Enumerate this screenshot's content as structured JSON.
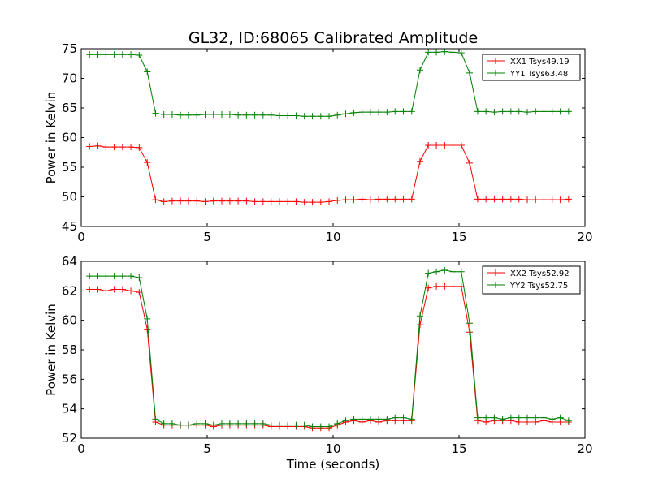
{
  "title": "GL32, ID:68065 Calibrated Amplitude",
  "chart_data": [
    {
      "type": "line",
      "title": "GL32, ID:68065 Calibrated Amplitude",
      "xlabel": "",
      "ylabel": "Power in Kelvin",
      "xlim": [
        0,
        20
      ],
      "ylim": [
        45,
        75
      ],
      "xticks": [
        "0",
        "5",
        "10",
        "15",
        "20"
      ],
      "yticks": [
        "45",
        "50",
        "55",
        "60",
        "65",
        "70",
        "75"
      ],
      "grid": false,
      "legend_position": "top-right",
      "x": [
        0.33,
        0.66,
        0.98,
        1.31,
        1.64,
        1.97,
        2.3,
        2.62,
        2.95,
        3.28,
        3.61,
        3.94,
        4.26,
        4.59,
        4.92,
        5.25,
        5.58,
        5.9,
        6.23,
        6.56,
        6.89,
        7.22,
        7.54,
        7.87,
        8.2,
        8.53,
        8.86,
        9.18,
        9.51,
        9.84,
        10.17,
        10.5,
        10.82,
        11.15,
        11.48,
        11.81,
        12.14,
        12.46,
        12.79,
        13.12,
        13.45,
        13.78,
        14.1,
        14.43,
        14.76,
        15.09,
        15.42,
        15.74,
        16.07,
        16.4,
        16.73,
        17.06,
        17.38,
        17.71,
        18.04,
        18.37,
        18.7,
        19.02,
        19.35
      ],
      "series": [
        {
          "name": "XX1 Tsys49.19",
          "color": "#ff0000",
          "values": [
            58.5,
            58.6,
            58.4,
            58.4,
            58.4,
            58.4,
            58.3,
            55.8,
            49.5,
            49.2,
            49.3,
            49.3,
            49.3,
            49.3,
            49.2,
            49.3,
            49.3,
            49.3,
            49.3,
            49.3,
            49.2,
            49.2,
            49.2,
            49.2,
            49.2,
            49.2,
            49.1,
            49.1,
            49.1,
            49.2,
            49.4,
            49.5,
            49.5,
            49.6,
            49.5,
            49.6,
            49.6,
            49.6,
            49.6,
            49.6,
            56.0,
            58.7,
            58.7,
            58.7,
            58.7,
            58.7,
            55.7,
            49.6,
            49.6,
            49.6,
            49.6,
            49.6,
            49.6,
            49.5,
            49.5,
            49.5,
            49.5,
            49.5,
            49.6
          ]
        },
        {
          "name": "YY1 Tsys63.48",
          "color": "#008000",
          "values": [
            74.0,
            74.0,
            74.0,
            74.0,
            74.0,
            74.0,
            73.9,
            71.1,
            64.1,
            63.9,
            63.9,
            63.8,
            63.8,
            63.8,
            63.9,
            63.9,
            63.9,
            63.9,
            63.8,
            63.8,
            63.8,
            63.8,
            63.8,
            63.7,
            63.7,
            63.7,
            63.6,
            63.6,
            63.6,
            63.6,
            63.8,
            64.0,
            64.2,
            64.3,
            64.3,
            64.3,
            64.3,
            64.4,
            64.4,
            64.4,
            71.4,
            74.4,
            74.4,
            74.5,
            74.4,
            74.3,
            70.9,
            64.4,
            64.4,
            64.3,
            64.4,
            64.4,
            64.4,
            64.3,
            64.4,
            64.4,
            64.4,
            64.4,
            64.4
          ]
        }
      ]
    },
    {
      "type": "line",
      "title": "",
      "xlabel": "Time (seconds)",
      "ylabel": "Power in Kelvin",
      "xlim": [
        0,
        20
      ],
      "ylim": [
        52,
        64
      ],
      "xticks": [
        "0",
        "5",
        "10",
        "15",
        "20"
      ],
      "yticks": [
        "52",
        "54",
        "56",
        "58",
        "60",
        "62",
        "64"
      ],
      "grid": false,
      "legend_position": "top-right",
      "x": [
        0.33,
        0.66,
        0.98,
        1.31,
        1.64,
        1.97,
        2.3,
        2.62,
        2.95,
        3.28,
        3.61,
        3.94,
        4.26,
        4.59,
        4.92,
        5.25,
        5.58,
        5.9,
        6.23,
        6.56,
        6.89,
        7.22,
        7.54,
        7.87,
        8.2,
        8.53,
        8.86,
        9.18,
        9.51,
        9.84,
        10.17,
        10.5,
        10.82,
        11.15,
        11.48,
        11.81,
        12.14,
        12.46,
        12.79,
        13.12,
        13.45,
        13.78,
        14.1,
        14.43,
        14.76,
        15.09,
        15.42,
        15.74,
        16.07,
        16.4,
        16.73,
        17.06,
        17.38,
        17.71,
        18.04,
        18.37,
        18.7,
        19.02,
        19.35
      ],
      "series": [
        {
          "name": "XX2 Tsys52.92",
          "color": "#ff0000",
          "values": [
            62.1,
            62.1,
            62.0,
            62.1,
            62.1,
            62.0,
            61.9,
            59.4,
            53.1,
            52.9,
            52.9,
            52.9,
            52.9,
            52.9,
            52.9,
            52.8,
            52.9,
            52.9,
            52.9,
            52.9,
            52.9,
            52.9,
            52.8,
            52.8,
            52.8,
            52.8,
            52.8,
            52.7,
            52.7,
            52.7,
            52.9,
            53.1,
            53.2,
            53.1,
            53.2,
            53.1,
            53.2,
            53.2,
            53.2,
            53.2,
            59.7,
            62.2,
            62.3,
            62.3,
            62.3,
            62.3,
            59.2,
            53.2,
            53.1,
            53.2,
            53.2,
            53.2,
            53.1,
            53.1,
            53.1,
            53.2,
            53.1,
            53.1,
            53.1
          ]
        },
        {
          "name": "YY2 Tsys52.75",
          "color": "#008000",
          "values": [
            63.0,
            63.0,
            63.0,
            63.0,
            63.0,
            63.0,
            62.9,
            60.1,
            53.3,
            53.0,
            53.0,
            52.9,
            52.9,
            53.0,
            53.0,
            52.9,
            53.0,
            53.0,
            53.0,
            53.0,
            53.0,
            53.0,
            52.9,
            52.9,
            52.9,
            52.9,
            52.9,
            52.8,
            52.8,
            52.8,
            53.0,
            53.2,
            53.3,
            53.3,
            53.3,
            53.3,
            53.3,
            53.4,
            53.4,
            53.3,
            60.3,
            63.2,
            63.3,
            63.4,
            63.3,
            63.3,
            59.8,
            53.4,
            53.4,
            53.4,
            53.3,
            53.4,
            53.4,
            53.4,
            53.4,
            53.4,
            53.3,
            53.4,
            53.2
          ]
        }
      ]
    }
  ]
}
